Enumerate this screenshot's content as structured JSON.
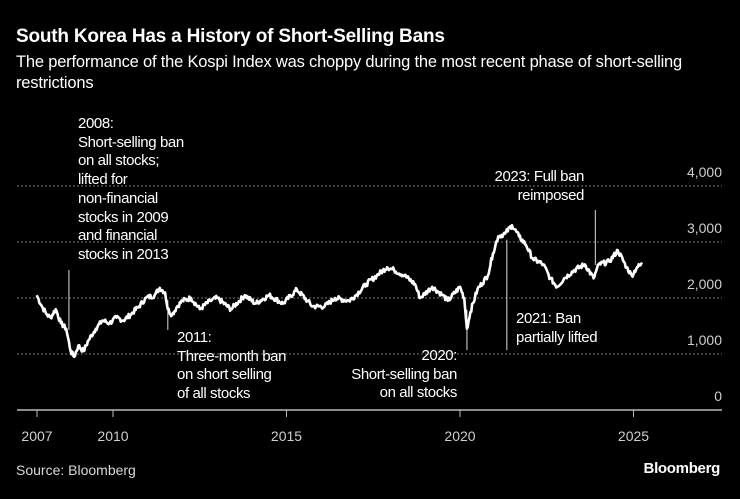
{
  "header": {
    "title": "South Korea Has a History of Short-Selling Bans",
    "subtitle": "The performance of the Kospi Index was choppy during the most recent phase of short-selling restrictions"
  },
  "footer": {
    "source": "Source: Bloomberg",
    "logo": "Bloomberg"
  },
  "chart_data": {
    "type": "line",
    "title": "South Korea Has a History of Short-Selling Bans",
    "xlabel": "",
    "ylabel": "",
    "xlim": [
      2007.8,
      2027.6
    ],
    "ylim": [
      0,
      4000
    ],
    "grid": true,
    "x_ticks": [
      {
        "value": 2007.8,
        "label": "2007"
      },
      {
        "value": 2010,
        "label": "2010"
      },
      {
        "value": 2015,
        "label": "2015"
      },
      {
        "value": 2020,
        "label": "2020"
      },
      {
        "value": 2025,
        "label": "2025"
      }
    ],
    "y_ticks": [
      {
        "value": 0,
        "label": "0"
      },
      {
        "value": 1000,
        "label": "1,000"
      },
      {
        "value": 2000,
        "label": "2,000"
      },
      {
        "value": 3000,
        "label": "3,000"
      },
      {
        "value": 4000,
        "label": "4,000"
      }
    ],
    "colors": {
      "background": "#000000",
      "line": "#ffffff",
      "grid": "#777777"
    },
    "series": [
      {
        "points": [
          [
            2007.8,
            2050
          ],
          [
            2007.95,
            1850
          ],
          [
            2008.1,
            1700
          ],
          [
            2008.2,
            1650
          ],
          [
            2008.35,
            1800
          ],
          [
            2008.5,
            1550
          ],
          [
            2008.65,
            1450
          ],
          [
            2008.78,
            1050
          ],
          [
            2008.88,
            950
          ],
          [
            2009.0,
            1150
          ],
          [
            2009.15,
            1050
          ],
          [
            2009.3,
            1250
          ],
          [
            2009.5,
            1450
          ],
          [
            2009.7,
            1600
          ],
          [
            2009.9,
            1550
          ],
          [
            2010.1,
            1650
          ],
          [
            2010.3,
            1600
          ],
          [
            2010.5,
            1700
          ],
          [
            2010.75,
            1850
          ],
          [
            2010.95,
            2000
          ],
          [
            2011.2,
            2050
          ],
          [
            2011.35,
            2180
          ],
          [
            2011.5,
            2100
          ],
          [
            2011.58,
            1800
          ],
          [
            2011.7,
            1700
          ],
          [
            2011.85,
            1850
          ],
          [
            2012.0,
            1950
          ],
          [
            2012.25,
            2000
          ],
          [
            2012.5,
            1800
          ],
          [
            2012.8,
            1950
          ],
          [
            2013.0,
            2000
          ],
          [
            2013.4,
            1800
          ],
          [
            2013.8,
            2050
          ],
          [
            2014.1,
            1900
          ],
          [
            2014.5,
            2050
          ],
          [
            2014.9,
            1900
          ],
          [
            2015.3,
            2150
          ],
          [
            2015.6,
            1950
          ],
          [
            2015.75,
            1850
          ],
          [
            2016.1,
            1850
          ],
          [
            2016.4,
            2000
          ],
          [
            2016.8,
            1950
          ],
          [
            2017.0,
            2050
          ],
          [
            2017.3,
            2250
          ],
          [
            2017.6,
            2400
          ],
          [
            2017.9,
            2550
          ],
          [
            2018.1,
            2500
          ],
          [
            2018.4,
            2400
          ],
          [
            2018.7,
            2250
          ],
          [
            2018.85,
            2000
          ],
          [
            2019.2,
            2200
          ],
          [
            2019.5,
            2050
          ],
          [
            2019.65,
            1950
          ],
          [
            2020.0,
            2200
          ],
          [
            2020.12,
            2000
          ],
          [
            2020.2,
            1450
          ],
          [
            2020.3,
            1750
          ],
          [
            2020.5,
            2150
          ],
          [
            2020.8,
            2400
          ],
          [
            2020.95,
            2800
          ],
          [
            2021.1,
            3100
          ],
          [
            2021.3,
            3150
          ],
          [
            2021.5,
            3300
          ],
          [
            2021.7,
            3100
          ],
          [
            2021.9,
            2950
          ],
          [
            2022.1,
            2700
          ],
          [
            2022.4,
            2600
          ],
          [
            2022.6,
            2350
          ],
          [
            2022.8,
            2200
          ],
          [
            2023.0,
            2350
          ],
          [
            2023.3,
            2500
          ],
          [
            2023.6,
            2600
          ],
          [
            2023.85,
            2350
          ],
          [
            2024.0,
            2600
          ],
          [
            2024.3,
            2650
          ],
          [
            2024.55,
            2850
          ],
          [
            2024.8,
            2550
          ],
          [
            2024.95,
            2400
          ],
          [
            2025.1,
            2550
          ],
          [
            2025.25,
            2600
          ]
        ]
      }
    ],
    "annotations": [
      {
        "x": 2008.73,
        "y_from": 1430,
        "y_to": 2500,
        "lines": [
          "2008:",
          "Short-selling ban",
          "on all stocks;",
          "lifted for",
          "non-financial",
          "stocks in 2009",
          "and financial",
          "stocks in 2013"
        ]
      },
      {
        "x": 2011.58,
        "y_from": 1430,
        "y_to": 1960,
        "lines": [
          "2011:",
          "Three-month ban",
          "on short selling",
          "of all stocks"
        ]
      },
      {
        "x": 2020.2,
        "y_from": 1070,
        "y_to": 1790,
        "lines": [
          "2020:",
          "Short-selling ban",
          "on all stocks"
        ]
      },
      {
        "x": 2021.35,
        "y_from": 1070,
        "y_to": 3040,
        "lines": [
          "2021: Ban",
          "partially lifted"
        ]
      },
      {
        "x": 2023.9,
        "y_from": 2590,
        "y_to": 3570,
        "lines": [
          "2023: Full ban",
          "reimposed"
        ]
      }
    ]
  }
}
